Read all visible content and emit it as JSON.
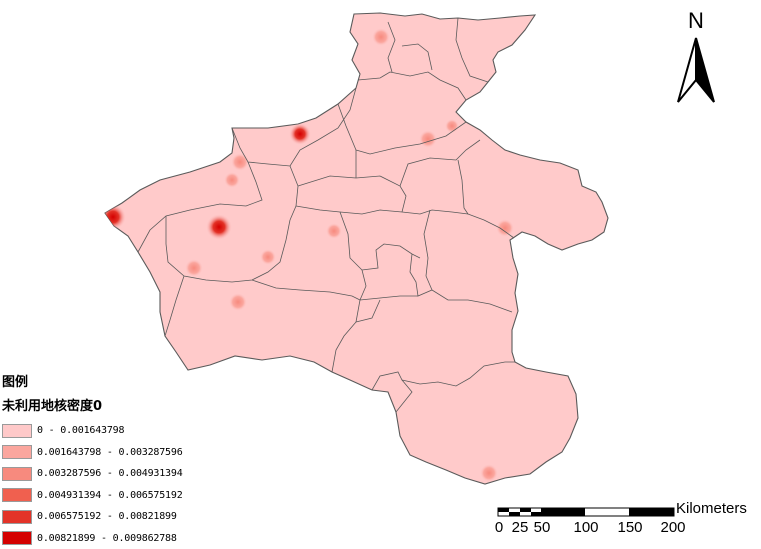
{
  "legend": {
    "heading": "图例",
    "subheading": "未利用地核密度0",
    "classes": [
      {
        "label": "0 - 0.001643798",
        "color": "#ffc9c9"
      },
      {
        "label": "0.001643798 - 0.003287596",
        "color": "#fba69e"
      },
      {
        "label": "0.003287596 - 0.004931394",
        "color": "#f78a7e"
      },
      {
        "label": "0.004931394 - 0.006575192",
        "color": "#f0604f"
      },
      {
        "label": "0.006575192 - 0.00821899",
        "color": "#e33328"
      },
      {
        "label": "0.00821899 - 0.009862788",
        "color": "#d40000"
      }
    ]
  },
  "north_arrow": {
    "letter": "N"
  },
  "scale_bar": {
    "unit": "Kilometers",
    "ticks": [
      "0",
      "25",
      "50",
      "100",
      "150",
      "200"
    ]
  },
  "colors": {
    "province_fill": "#ffcaca",
    "boundary": "#5a5a5a"
  }
}
